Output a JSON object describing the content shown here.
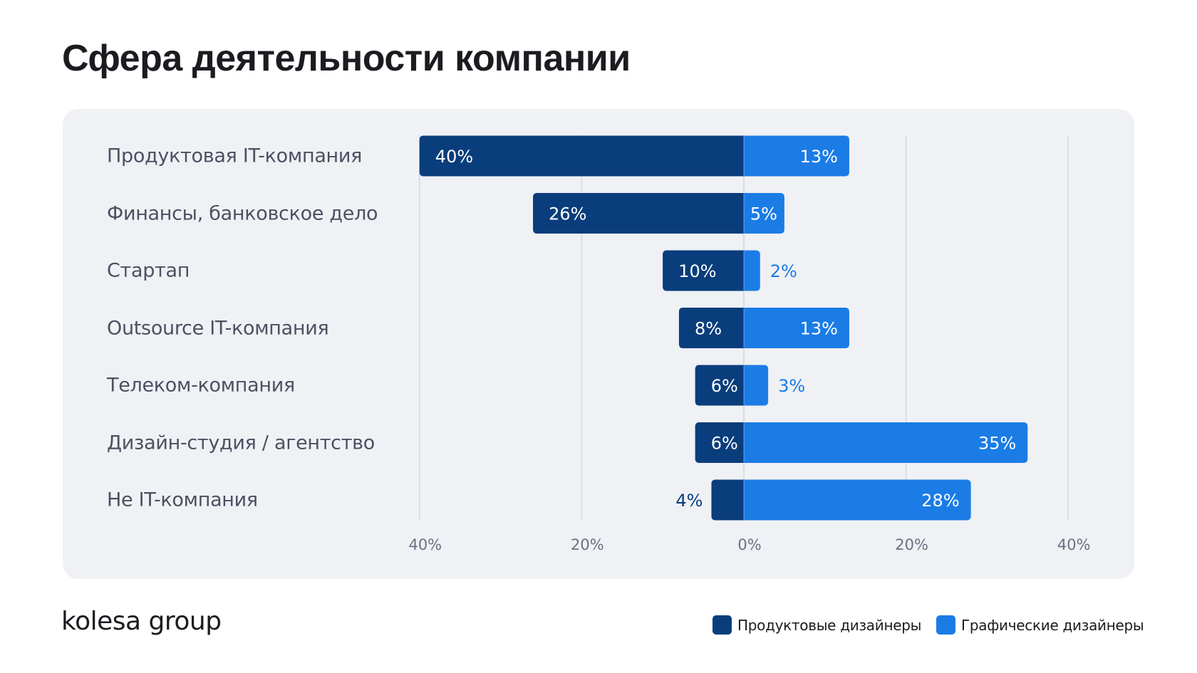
{
  "title": "Сфера деятельности компании",
  "logo": "kolesa group",
  "colors": {
    "product": "#0a3d7c",
    "graphic": "#1b7ce6",
    "grid": "#d3d7de",
    "label_on_bar": "#ffffff"
  },
  "legend": [
    {
      "label": "Продуктовые дизайнеры",
      "color": "#0a3d7c"
    },
    {
      "label": "Графические дизайнеры",
      "color": "#1b7ce6"
    }
  ],
  "chart_data": {
    "type": "bar",
    "orientation": "horizontal-diverging",
    "title": "Сфера деятельности компании",
    "categories": [
      "Продуктовая IT-компания",
      "Финансы, банковское дело",
      "Стартап",
      "Outsource IT-компания",
      "Телеком-компания",
      "Дизайн-студия / агентство",
      "Не IT-компания"
    ],
    "series": [
      {
        "name": "Продуктовые дизайнеры",
        "direction": "left",
        "values": [
          40,
          26,
          10,
          8,
          6,
          6,
          4
        ],
        "labels": [
          "40%",
          "26%",
          "10%",
          "8%",
          "6%",
          "6%",
          "4%"
        ]
      },
      {
        "name": "Графические дизайнеры",
        "direction": "right",
        "values": [
          13,
          5,
          2,
          13,
          3,
          35,
          28
        ],
        "labels": [
          "13%",
          "5%",
          "2%",
          "13%",
          "3%",
          "35%",
          "28%"
        ]
      }
    ],
    "xticks": [
      {
        "value": -40,
        "label": "40%"
      },
      {
        "value": -20,
        "label": "20%"
      },
      {
        "value": 0,
        "label": "0%"
      },
      {
        "value": 20,
        "label": "20%"
      },
      {
        "value": 40,
        "label": "40%"
      }
    ],
    "xlim": [
      -40,
      40
    ],
    "xlabel": "",
    "ylabel": "",
    "grid": true,
    "legend_position": "bottom-right"
  }
}
